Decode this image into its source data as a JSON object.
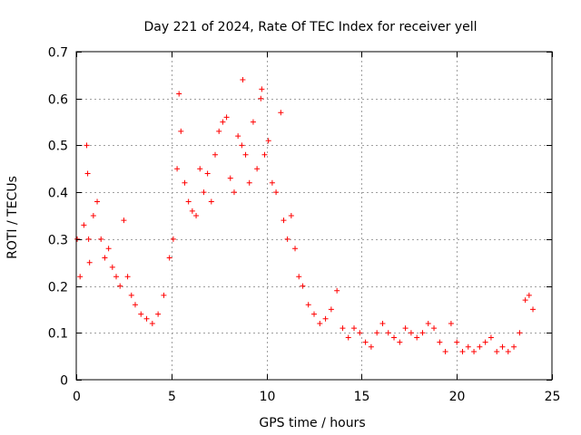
{
  "chart_data": {
    "type": "scatter",
    "title": "Day 221 of 2024, Rate Of TEC Index for receiver yell",
    "xlabel": "GPS time / hours",
    "ylabel": "ROTI / TECUs",
    "xlim": [
      0,
      25
    ],
    "ylim": [
      0,
      0.7
    ],
    "x_ticks": [
      0,
      5,
      10,
      15,
      20,
      25
    ],
    "x_tick_labels": [
      "0",
      "5",
      "10",
      "15",
      "20",
      "25"
    ],
    "y_ticks": [
      0,
      0.1,
      0.2,
      0.3,
      0.4,
      0.5,
      0.6,
      0.7
    ],
    "y_tick_labels": [
      "0",
      "0.1",
      "0.2",
      "0.3",
      "0.4",
      "0.5",
      "0.6",
      "0.7"
    ],
    "grid": true,
    "marker": "plus",
    "marker_color": "#ff0000",
    "series": [
      {
        "name": "ROTI",
        "x": [
          0.05,
          0.2,
          0.4,
          0.55,
          0.6,
          0.65,
          0.7,
          0.9,
          1.1,
          1.3,
          1.5,
          1.7,
          1.9,
          2.1,
          2.3,
          2.5,
          2.7,
          2.9,
          3.1,
          3.4,
          3.7,
          4.0,
          4.3,
          4.6,
          4.9,
          5.1,
          5.3,
          5.4,
          5.5,
          5.7,
          5.9,
          6.1,
          6.3,
          6.5,
          6.7,
          6.9,
          7.1,
          7.3,
          7.5,
          7.7,
          7.9,
          8.1,
          8.3,
          8.5,
          8.7,
          8.75,
          8.9,
          9.1,
          9.3,
          9.5,
          9.7,
          9.75,
          9.9,
          10.1,
          10.3,
          10.5,
          10.75,
          10.9,
          11.1,
          11.3,
          11.5,
          11.7,
          11.9,
          12.2,
          12.5,
          12.8,
          13.1,
          13.4,
          13.7,
          14.0,
          14.3,
          14.6,
          14.9,
          15.2,
          15.5,
          15.8,
          16.1,
          16.4,
          16.7,
          17.0,
          17.3,
          17.6,
          17.9,
          18.2,
          18.5,
          18.8,
          19.1,
          19.4,
          19.7,
          20.0,
          20.3,
          20.6,
          20.9,
          21.2,
          21.5,
          21.8,
          22.1,
          22.4,
          22.7,
          23.0,
          23.3,
          23.6,
          23.8,
          24.0
        ],
        "y": [
          0.3,
          0.22,
          0.33,
          0.5,
          0.44,
          0.3,
          0.25,
          0.35,
          0.38,
          0.3,
          0.26,
          0.28,
          0.24,
          0.22,
          0.2,
          0.34,
          0.22,
          0.18,
          0.16,
          0.14,
          0.13,
          0.12,
          0.14,
          0.18,
          0.26,
          0.3,
          0.45,
          0.61,
          0.53,
          0.42,
          0.38,
          0.36,
          0.35,
          0.45,
          0.4,
          0.44,
          0.38,
          0.48,
          0.53,
          0.55,
          0.56,
          0.43,
          0.4,
          0.52,
          0.5,
          0.64,
          0.48,
          0.42,
          0.55,
          0.45,
          0.6,
          0.62,
          0.48,
          0.51,
          0.42,
          0.4,
          0.57,
          0.34,
          0.3,
          0.35,
          0.28,
          0.22,
          0.2,
          0.16,
          0.14,
          0.12,
          0.13,
          0.15,
          0.19,
          0.11,
          0.09,
          0.11,
          0.1,
          0.08,
          0.07,
          0.1,
          0.12,
          0.1,
          0.09,
          0.08,
          0.11,
          0.1,
          0.09,
          0.1,
          0.12,
          0.11,
          0.08,
          0.06,
          0.12,
          0.08,
          0.06,
          0.07,
          0.06,
          0.07,
          0.08,
          0.09,
          0.06,
          0.07,
          0.06,
          0.07,
          0.1,
          0.17,
          0.18,
          0.15
        ]
      }
    ]
  }
}
